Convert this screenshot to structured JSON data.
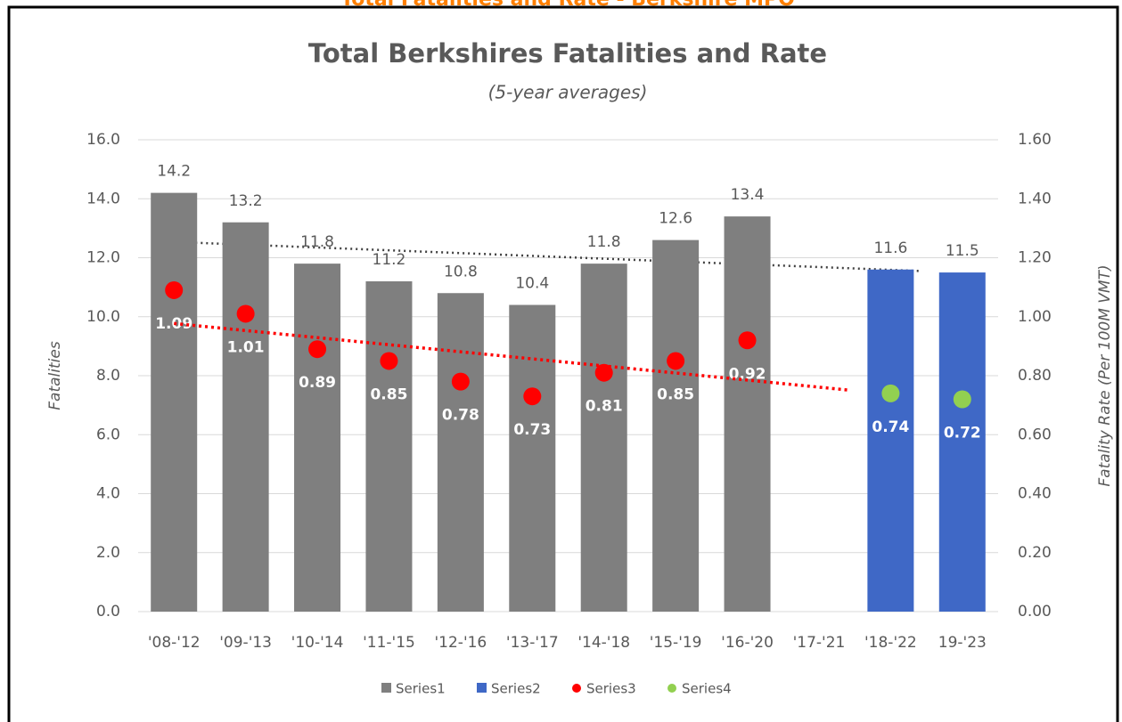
{
  "header": "Total Fatalities and Rate - Berkshire MPO",
  "chart_data": {
    "type": "bar-dot",
    "title": "Total Berkshires Fatalities and Rate",
    "subtitle": "(5-year averages)",
    "ylabel": "Fatalities",
    "y2label": "Fatality Rate (Per 100M VMT)",
    "categories": [
      "'08-'12",
      "'09-'13",
      "'10-'14",
      "'11-'15",
      "'12-'16",
      "'13-'17",
      "'14-'18",
      "'15-'19",
      "'16-'20",
      "'17-'21",
      "'18-'22",
      "19-'23"
    ],
    "series": [
      {
        "name": "Series1",
        "kind": "bar",
        "color": "#7f7f7f",
        "values": [
          14.2,
          13.2,
          11.8,
          11.2,
          10.8,
          10.4,
          11.8,
          12.6,
          13.4,
          null,
          null,
          null
        ]
      },
      {
        "name": "Series2",
        "kind": "bar",
        "color": "#3f68c6",
        "values": [
          null,
          null,
          null,
          null,
          null,
          null,
          null,
          null,
          null,
          null,
          11.6,
          11.5
        ]
      },
      {
        "name": "Series3",
        "kind": "dot",
        "axis": "y2",
        "color": "#ff0000",
        "values": [
          1.09,
          1.01,
          0.89,
          0.85,
          0.78,
          0.73,
          0.81,
          0.85,
          0.92,
          null,
          null,
          null
        ]
      },
      {
        "name": "Series4",
        "kind": "dot",
        "axis": "y2",
        "color": "#92d050",
        "values": [
          null,
          null,
          null,
          null,
          null,
          null,
          null,
          null,
          null,
          null,
          0.74,
          0.72
        ]
      }
    ],
    "ylim": [
      0,
      16
    ],
    "yticks": [
      {
        "value": 0,
        "label": "0.0"
      },
      {
        "value": 2,
        "label": "2.0"
      },
      {
        "value": 4,
        "label": "4.0"
      },
      {
        "value": 6,
        "label": "6.0"
      },
      {
        "value": 8,
        "label": "8.0"
      },
      {
        "value": 10,
        "label": "10.0"
      },
      {
        "value": 12,
        "label": "12.0"
      },
      {
        "value": 14,
        "label": "14.0"
      },
      {
        "value": 16,
        "label": "16.0"
      }
    ],
    "y2lim": [
      0,
      1.6
    ],
    "y2ticks": [
      {
        "value": 0,
        "label": "0.00"
      },
      {
        "value": 0.2,
        "label": "0.20"
      },
      {
        "value": 0.4,
        "label": "0.40"
      },
      {
        "value": 0.6,
        "label": "0.60"
      },
      {
        "value": 0.8,
        "label": "0.80"
      },
      {
        "value": 1,
        "label": "1.00"
      },
      {
        "value": 1.2,
        "label": "1.20"
      },
      {
        "value": 1.4,
        "label": "1.40"
      },
      {
        "value": 1.6,
        "label": "1.60"
      }
    ],
    "grid": true,
    "legend": "bottom",
    "trendline": true
  }
}
